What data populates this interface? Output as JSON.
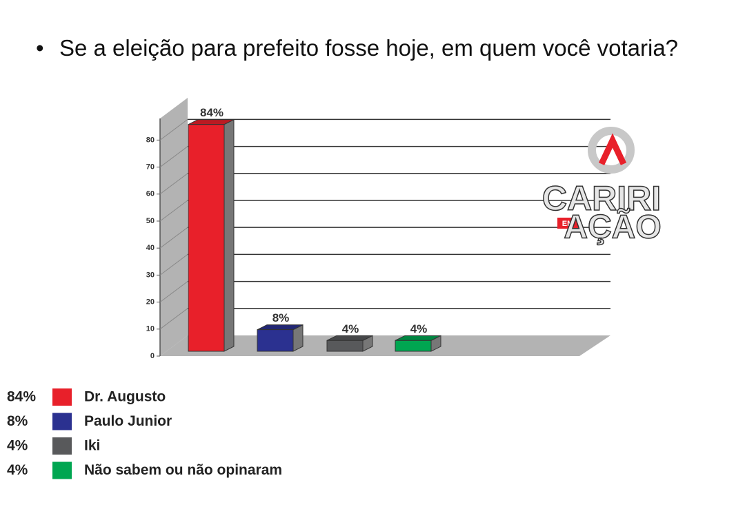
{
  "chart_data": {
    "type": "bar3d",
    "title": "Se a eleição para prefeito fosse hoje, em quem você votaria?",
    "categories": [
      "Dr. Augusto",
      "Paulo Junior",
      "Iki",
      "Não sabem ou não opinaram"
    ],
    "values": [
      84,
      8,
      4,
      4
    ],
    "value_labels": [
      "84%",
      "8%",
      "4%",
      "4%"
    ],
    "colors": [
      "#e8202a",
      "#2b3190",
      "#58595b",
      "#00a651"
    ],
    "ylim": [
      0,
      88
    ],
    "yticks": [
      0,
      10,
      20,
      30,
      40,
      50,
      60,
      70,
      80
    ],
    "grid": true,
    "watermark": [
      "CARIRI",
      "EM",
      "AÇÃO"
    ]
  }
}
